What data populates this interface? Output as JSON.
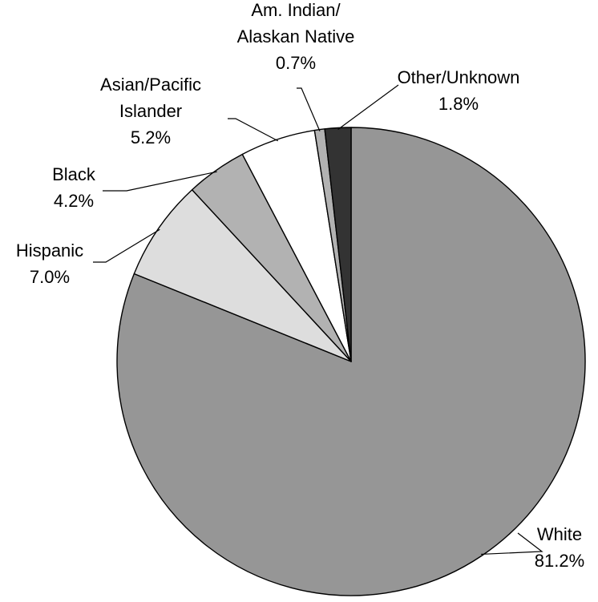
{
  "chart_data": {
    "type": "pie",
    "slices": [
      {
        "name": "White",
        "value": 81.2,
        "value_label": "81.2%",
        "color": "#969696"
      },
      {
        "name": "Hispanic",
        "value": 7.0,
        "value_label": "7.0%",
        "color": "#dddddd"
      },
      {
        "name": "Black",
        "value": 4.2,
        "value_label": "4.2%",
        "color": "#b2b2b2"
      },
      {
        "name": "Asian/Pacific Islander",
        "value": 5.2,
        "value_label": "5.2%",
        "color": "#ffffff"
      },
      {
        "name": "Am. Indian/ Alaskan Native",
        "value": 0.7,
        "value_label": "0.7%",
        "color": "#b2b2b2"
      },
      {
        "name": "Other/Unknown",
        "value": 1.8,
        "value_label": "1.8%",
        "color": "#333333"
      }
    ],
    "start_angle": "12 o'clock",
    "direction": "clockwise",
    "labels": "outside with leader lines",
    "legend": "none"
  }
}
